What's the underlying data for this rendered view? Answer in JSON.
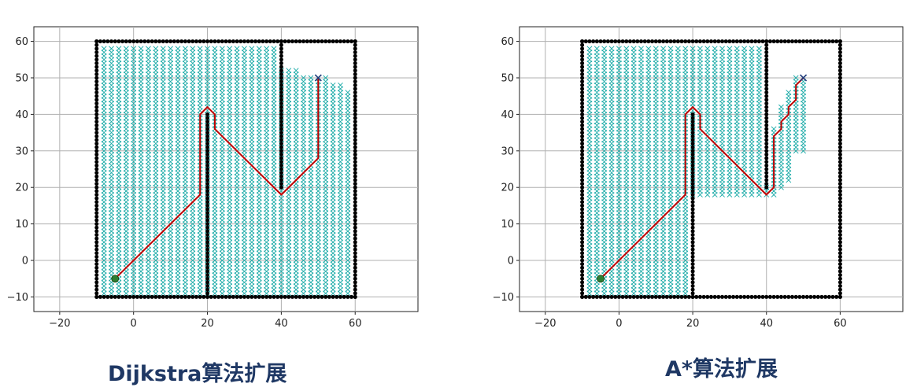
{
  "colors": {
    "obstacle": "#000000",
    "explored": "#17a9a6",
    "path": "#c00000",
    "start": "#2e7d32",
    "goal": "#1f3b7a",
    "grid": "#b0b0b0",
    "caption": "#1f3864"
  },
  "chart_data": [
    {
      "type": "scatter",
      "title": "Dijkstra算法扩展",
      "xlabel": "",
      "ylabel": "",
      "xlim": [
        -27,
        77
      ],
      "ylim": [
        -14,
        64
      ],
      "xticks": [
        -20,
        0,
        20,
        40,
        60
      ],
      "yticks": [
        -10,
        0,
        10,
        20,
        30,
        40,
        50,
        60
      ],
      "grid": true,
      "start": [
        -5,
        -5
      ],
      "goal": [
        50,
        50
      ],
      "obstacles": [
        {
          "from": [
            -10,
            -10
          ],
          "to": [
            60,
            -10
          ]
        },
        {
          "from": [
            -10,
            60
          ],
          "to": [
            60,
            60
          ]
        },
        {
          "from": [
            -10,
            -10
          ],
          "to": [
            -10,
            60
          ]
        },
        {
          "from": [
            60,
            -10
          ],
          "to": [
            60,
            60
          ]
        },
        {
          "from": [
            20,
            -10
          ],
          "to": [
            20,
            40
          ]
        },
        {
          "from": [
            40,
            20
          ],
          "to": [
            40,
            60
          ]
        }
      ],
      "explored": [
        {
          "x": [
            -8,
            38
          ],
          "y": [
            -9,
            58
          ]
        },
        {
          "x": [
            -8,
            58
          ],
          "y": [
            -9,
            46
          ]
        },
        {
          "x": [
            40,
            56
          ],
          "y": [
            47,
            48
          ]
        },
        {
          "x": [
            40,
            52
          ],
          "y": [
            49,
            50
          ]
        },
        {
          "x": [
            40,
            44
          ],
          "y": [
            51,
            52
          ]
        }
      ],
      "path": [
        [
          -5,
          -5
        ],
        [
          18,
          18
        ],
        [
          18,
          40
        ],
        [
          20,
          42
        ],
        [
          22,
          40
        ],
        [
          22,
          36
        ],
        [
          40,
          18
        ],
        [
          50,
          28
        ],
        [
          50,
          50
        ]
      ]
    },
    {
      "type": "scatter",
      "title": "A*算法扩展",
      "xlabel": "",
      "ylabel": "",
      "xlim": [
        -27,
        77
      ],
      "ylim": [
        -14,
        64
      ],
      "xticks": [
        -20,
        0,
        20,
        40,
        60
      ],
      "yticks": [
        -10,
        0,
        10,
        20,
        30,
        40,
        50,
        60
      ],
      "grid": true,
      "start": [
        -5,
        -5
      ],
      "goal": [
        50,
        50
      ],
      "obstacles": [
        {
          "from": [
            -10,
            -10
          ],
          "to": [
            60,
            -10
          ]
        },
        {
          "from": [
            -10,
            60
          ],
          "to": [
            60,
            60
          ]
        },
        {
          "from": [
            -10,
            -10
          ],
          "to": [
            -10,
            60
          ]
        },
        {
          "from": [
            60,
            -10
          ],
          "to": [
            60,
            60
          ]
        },
        {
          "from": [
            20,
            -10
          ],
          "to": [
            20,
            40
          ]
        },
        {
          "from": [
            40,
            20
          ],
          "to": [
            40,
            60
          ]
        }
      ],
      "explored": [
        {
          "x": [
            -8,
            18
          ],
          "y": [
            -9,
            58
          ]
        },
        {
          "x": [
            20,
            38
          ],
          "y": [
            18,
            58
          ]
        },
        {
          "x": [
            40,
            42
          ],
          "y": [
            18,
            20
          ]
        },
        {
          "x": [
            42,
            44
          ],
          "y": [
            20,
            22
          ]
        },
        {
          "x": [
            42,
            46
          ],
          "y": [
            22,
            30
          ]
        },
        {
          "x": [
            42,
            50
          ],
          "y": [
            30,
            36
          ]
        },
        {
          "x": [
            44,
            50
          ],
          "y": [
            36,
            42
          ]
        },
        {
          "x": [
            46,
            50
          ],
          "y": [
            42,
            46
          ]
        },
        {
          "x": [
            48,
            50
          ],
          "y": [
            46,
            50
          ]
        }
      ],
      "path": [
        [
          -5,
          -5
        ],
        [
          18,
          18
        ],
        [
          18,
          40
        ],
        [
          20,
          42
        ],
        [
          22,
          40
        ],
        [
          22,
          36
        ],
        [
          40,
          18
        ],
        [
          42,
          20
        ],
        [
          42,
          34
        ],
        [
          44,
          36
        ],
        [
          44,
          38
        ],
        [
          46,
          40
        ],
        [
          46,
          42
        ],
        [
          48,
          44
        ],
        [
          48,
          48
        ],
        [
          50,
          50
        ]
      ]
    }
  ]
}
